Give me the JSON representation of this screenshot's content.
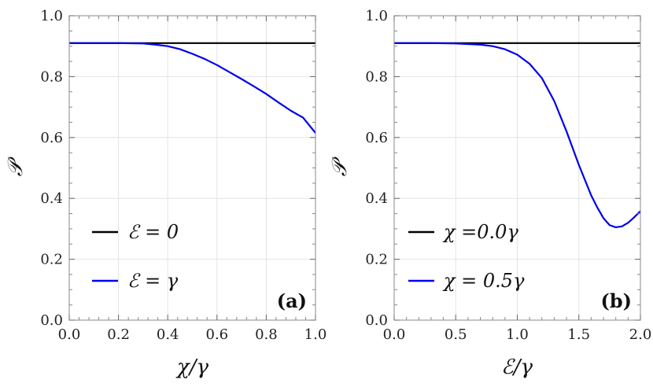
{
  "chart_data": [
    {
      "type": "line",
      "panel_label": "(a)",
      "xlabel": "χ/γ",
      "ylabel": "𝒫",
      "xlim": [
        0,
        1
      ],
      "ylim": [
        0,
        1
      ],
      "x_ticks": [
        "0.0",
        "0.2",
        "0.4",
        "0.6",
        "0.8",
        "1.0"
      ],
      "y_ticks": [
        "0.0",
        "0.2",
        "0.4",
        "0.6",
        "0.8",
        "1.0"
      ],
      "grid": true,
      "legend_position": "bottom-left",
      "series": [
        {
          "name": "ℰ = 0",
          "color": "#000000",
          "x": [
            0,
            0.1,
            0.2,
            0.3,
            0.4,
            0.5,
            0.6,
            0.7,
            0.8,
            0.9,
            1.0
          ],
          "y": [
            0.91,
            0.91,
            0.91,
            0.91,
            0.91,
            0.91,
            0.91,
            0.91,
            0.91,
            0.91,
            0.91
          ]
        },
        {
          "name": "ℰ = γ",
          "color": "#0000ee",
          "x": [
            0,
            0.1,
            0.2,
            0.3,
            0.35,
            0.4,
            0.45,
            0.5,
            0.55,
            0.6,
            0.65,
            0.7,
            0.75,
            0.8,
            0.85,
            0.9,
            0.95,
            1.0
          ],
          "y": [
            0.91,
            0.91,
            0.91,
            0.909,
            0.905,
            0.9,
            0.89,
            0.875,
            0.858,
            0.838,
            0.815,
            0.792,
            0.768,
            0.743,
            0.715,
            0.688,
            0.665,
            0.615
          ]
        }
      ]
    },
    {
      "type": "line",
      "panel_label": "(b)",
      "xlabel": "ℰ/γ",
      "ylabel": "𝒫",
      "xlim": [
        0,
        2
      ],
      "ylim": [
        0,
        1
      ],
      "x_ticks": [
        "0.0",
        "0.5",
        "1.0",
        "1.5",
        "2.0"
      ],
      "y_ticks": [
        "0.0",
        "0.2",
        "0.4",
        "0.6",
        "0.8",
        "1.0"
      ],
      "grid": true,
      "legend_position": "bottom-left",
      "series": [
        {
          "name": "χ =0.0γ",
          "color": "#000000",
          "x": [
            0,
            0.5,
            1.0,
            1.5,
            2.0
          ],
          "y": [
            0.91,
            0.91,
            0.91,
            0.91,
            0.91
          ]
        },
        {
          "name": "χ = 0.5γ",
          "color": "#0000ee",
          "x": [
            0,
            0.3,
            0.5,
            0.7,
            0.8,
            0.9,
            1.0,
            1.1,
            1.2,
            1.3,
            1.4,
            1.5,
            1.6,
            1.65,
            1.7,
            1.75,
            1.8,
            1.85,
            1.9,
            1.95,
            2.0
          ],
          "y": [
            0.91,
            0.91,
            0.909,
            0.905,
            0.9,
            0.89,
            0.872,
            0.842,
            0.795,
            0.72,
            0.62,
            0.51,
            0.41,
            0.37,
            0.335,
            0.312,
            0.305,
            0.308,
            0.32,
            0.338,
            0.358
          ]
        }
      ]
    }
  ]
}
